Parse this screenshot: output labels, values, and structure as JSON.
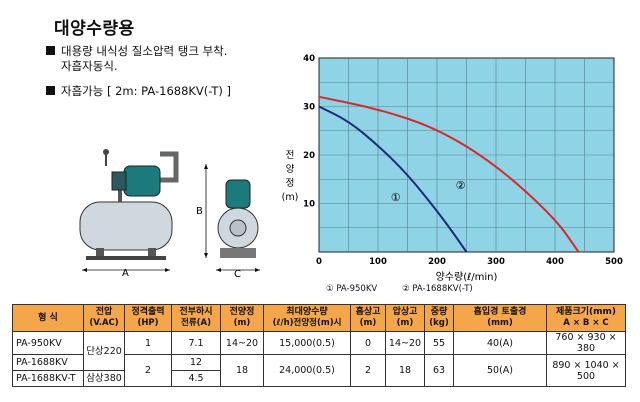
{
  "title": "대양수량용",
  "bullets": {
    "b1_line1": "대용량 내식성 질소압력 탱크 부착.",
    "b1_line2": "자흡자동식.",
    "b2": "자흡가능 [ 2m: PA-1688KV(-T) ]"
  },
  "drawing": {
    "label_a": "A",
    "label_b": "B",
    "label_c": "C"
  },
  "chart_data": {
    "type": "line",
    "xlabel": "양수량(ℓ/min)",
    "ylabel_chars": [
      "전",
      "양",
      "정",
      "(m)"
    ],
    "xlim": [
      0,
      500
    ],
    "ylim": [
      0,
      40
    ],
    "xticks": [
      "0",
      "100",
      "200",
      "300",
      "400",
      "500"
    ],
    "yticks": [
      "10",
      "20",
      "30",
      "40"
    ],
    "grid": true,
    "background": "#8fd3e6",
    "series": [
      {
        "name": "①",
        "color": "#1f2a78",
        "x": [
          0,
          50,
          100,
          150,
          200,
          230,
          250
        ],
        "y": [
          30,
          27,
          22,
          16,
          8.5,
          3.5,
          0
        ]
      },
      {
        "name": "②",
        "color": "#d42a2a",
        "x": [
          0,
          100,
          200,
          300,
          400,
          440
        ],
        "y": [
          32,
          29.5,
          25.5,
          18,
          7,
          0
        ]
      }
    ],
    "series_markers": [
      {
        "label": "①",
        "x": 130,
        "y": 10.5
      },
      {
        "label": "②",
        "x": 240,
        "y": 13
      }
    ],
    "legend": {
      "item1": "① PA-950KV",
      "item2": "② PA-1688KV(-T)"
    }
  },
  "table": {
    "headers": {
      "model": "형  식",
      "voltage": "전압",
      "voltage_unit": "(V.AC)",
      "output": "정격출력",
      "output_unit": "(HP)",
      "load_current": "전부하시",
      "load_current_unit": "전류(A)",
      "head": "전양정",
      "head_unit": "(m)",
      "max_flow": "최대양수량",
      "max_flow_unit": "(ℓ/h)전양정(m)시",
      "suction": "흡상고",
      "suction_unit": "(m)",
      "lift": "압상고",
      "lift_unit": "(m)",
      "weight": "중량",
      "weight_unit": "(kg)",
      "inout": "흡입경  토출경",
      "inout_unit": "(mm)",
      "size": "제품크기(mm)",
      "size_unit": "A × B × C"
    },
    "rows": {
      "r1_model": "PA-950KV",
      "r1_voltage": "단상220",
      "r1_output": "1",
      "r1_current": "7.1",
      "r1_head": "14~20",
      "r1_flow": "15,000(0.5)",
      "r1_suction": "0",
      "r1_lift": "14~20",
      "r1_weight": "55",
      "r1_inout": "40(A)",
      "r1_size": "760 × 930 × 380",
      "r2_model": "PA-1688KV",
      "r2_output": "2",
      "r2_current": "12",
      "r2_head": "18",
      "r2_flow": "24,000(0.5)",
      "r2_suction": "2",
      "r2_lift": "18",
      "r2_weight": "63",
      "r2_inout": "50(A)",
      "r2_size": "890 × 1040 × 500",
      "r3_model": "PA-1688KV-T",
      "r3_voltage": "삼상380",
      "r3_current": "4.5"
    }
  }
}
